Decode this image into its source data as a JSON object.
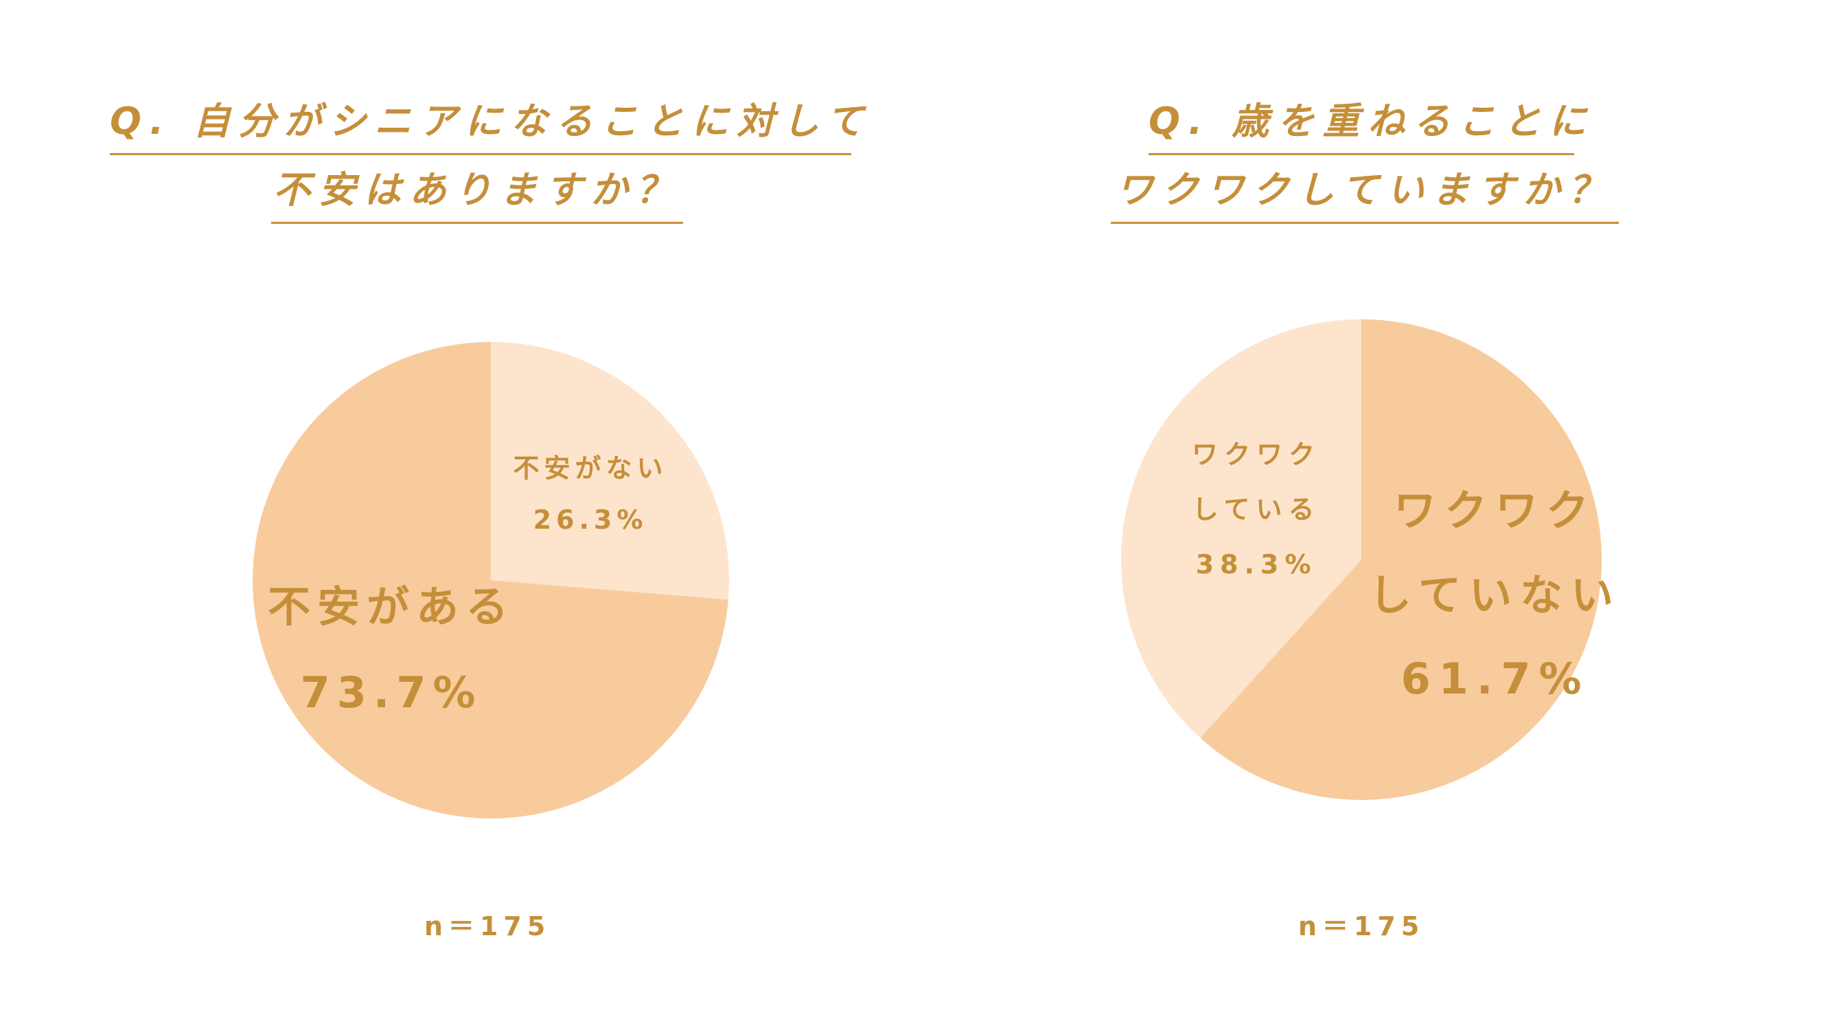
{
  "colors": {
    "text": "#c58f3a",
    "slice_dark": "#f8cb9d",
    "slice_light": "#fde4cd"
  },
  "chart_data": [
    {
      "type": "pie",
      "title": "Q. 自分がシニアになることに対して 不安はありますか？",
      "title_lines": [
        "Q. 自分がシニアになることに対して",
        "不安はありますか？"
      ],
      "slices": [
        {
          "label_lines": [
            "不安がない",
            "26.3%"
          ],
          "value": 26.3,
          "color": "#fde4cd"
        },
        {
          "label_lines": [
            "不安がある",
            "73.7%"
          ],
          "value": 73.7,
          "color": "#f8cb9d"
        }
      ],
      "n_label": "n＝175"
    },
    {
      "type": "pie",
      "title": "Q. 歳を重ねることに ワクワクしていますか？",
      "title_lines": [
        "Q. 歳を重ねることに",
        "ワクワクしていますか？"
      ],
      "slices": [
        {
          "label_lines": [
            "ワクワク",
            "していない",
            "61.7%"
          ],
          "value": 61.7,
          "color": "#f8cb9d"
        },
        {
          "label_lines": [
            "ワクワク",
            "している",
            "38.3%"
          ],
          "value": 38.3,
          "color": "#fde4cd"
        }
      ],
      "n_label": "n＝175"
    }
  ]
}
